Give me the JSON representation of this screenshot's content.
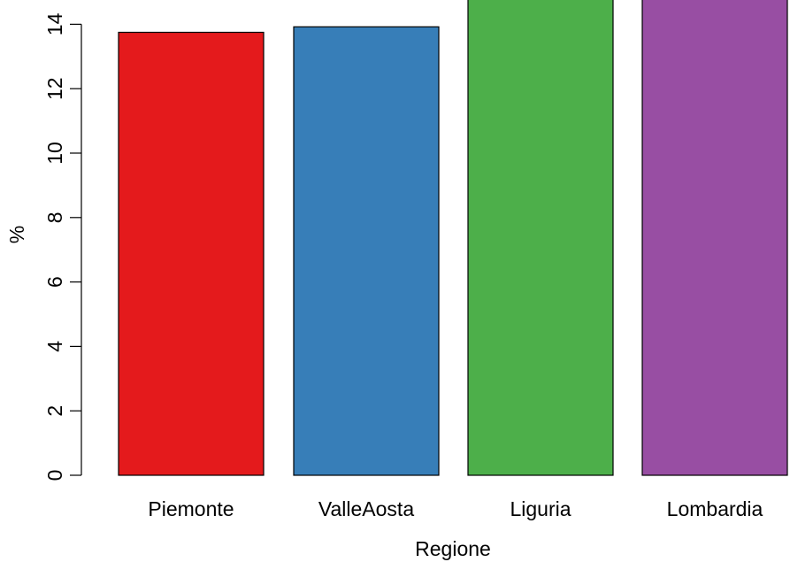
{
  "chart_data": {
    "type": "bar",
    "categories": [
      "Piemonte",
      "ValleAosta",
      "Liguria",
      "Lombardia"
    ],
    "values": [
      13.75,
      13.92,
      15.4,
      15.4
    ],
    "colors": [
      "#E41A1C",
      "#377EB8",
      "#4DAF4A",
      "#984EA3"
    ],
    "title": "",
    "xlabel": "Regione",
    "ylabel": "%",
    "ylim": [
      0,
      14.5
    ],
    "yticks": [
      0,
      2,
      4,
      6,
      8,
      10,
      12,
      14
    ],
    "ytick_labels": [
      "0",
      "2",
      "4",
      "6",
      "8",
      "10",
      "12",
      "14"
    ],
    "grid": false,
    "legend": "none"
  }
}
